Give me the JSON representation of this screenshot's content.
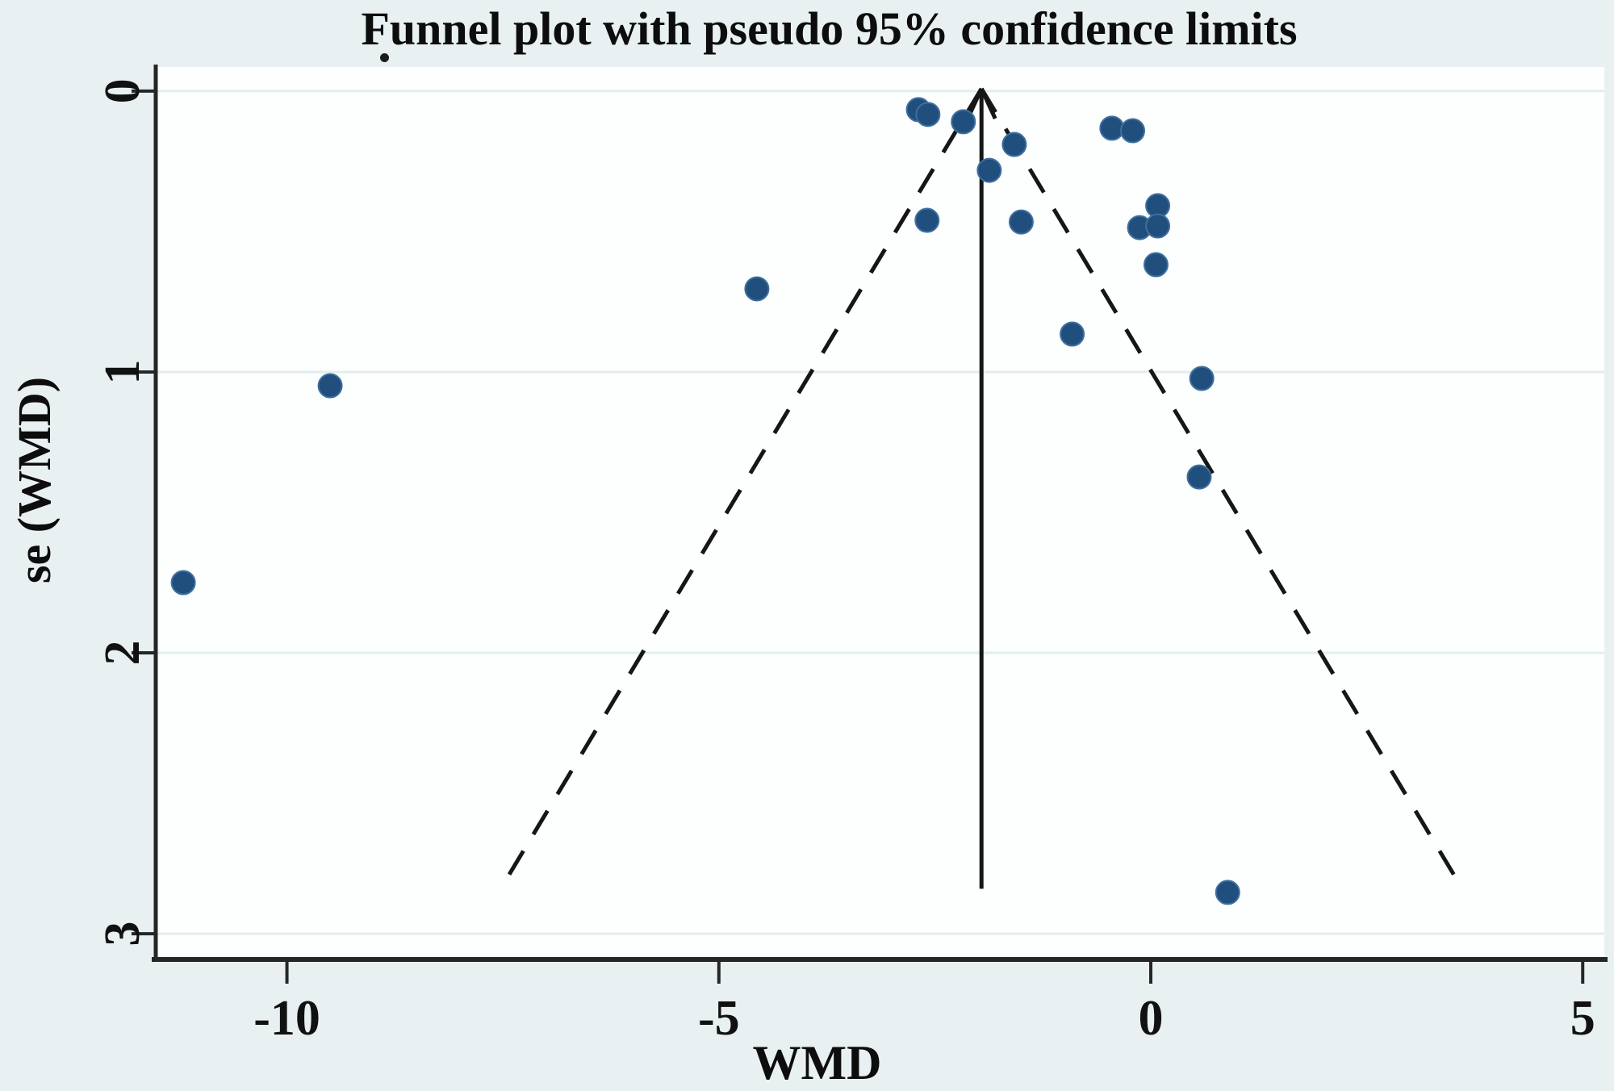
{
  "chart_data": {
    "type": "scatter",
    "title": "Funnel plot with pseudo 95% confidence limits",
    "xlabel": "WMD",
    "ylabel": "se (WMD)",
    "xlim": [
      -11.5,
      5.25
    ],
    "se_lim": [
      -0.086,
      3.086
    ],
    "y_axis_inverted": true,
    "x_ticks": [
      -10,
      -5,
      0,
      5
    ],
    "y_ticks": [
      0,
      1,
      2,
      3
    ],
    "grid": true,
    "legend": "none",
    "pooled_wmd": -1.96,
    "center_line": {
      "se_start": 0,
      "se_end": 2.84,
      "style": "solid",
      "arrow_up": true
    },
    "funnel": {
      "z": 1.96,
      "se_start": 0,
      "se_end": 2.83,
      "style": "dashed"
    },
    "points": [
      {
        "wmd": -2.69,
        "se": 0.066
      },
      {
        "wmd": -2.58,
        "se": 0.083
      },
      {
        "wmd": -2.17,
        "se": 0.109
      },
      {
        "wmd": -1.58,
        "se": 0.19
      },
      {
        "wmd": -1.87,
        "se": 0.282
      },
      {
        "wmd": -0.45,
        "se": 0.132
      },
      {
        "wmd": -0.21,
        "se": 0.141
      },
      {
        "wmd": -2.59,
        "se": 0.46
      },
      {
        "wmd": -1.5,
        "se": 0.466
      },
      {
        "wmd": 0.08,
        "se": 0.408
      },
      {
        "wmd": -0.13,
        "se": 0.486
      },
      {
        "wmd": 0.08,
        "se": 0.48
      },
      {
        "wmd": 0.06,
        "se": 0.618
      },
      {
        "wmd": -4.56,
        "se": 0.704
      },
      {
        "wmd": -0.91,
        "se": 0.865
      },
      {
        "wmd": -9.5,
        "se": 1.049
      },
      {
        "wmd": 0.59,
        "se": 1.023
      },
      {
        "wmd": 0.56,
        "se": 1.374
      },
      {
        "wmd": -11.2,
        "se": 1.75
      },
      {
        "wmd": 0.89,
        "se": 2.853
      }
    ],
    "colors": {
      "figure_bg": "#e9f0f2",
      "plot_bg": "#fdfefe",
      "gridline": "#e2eeee",
      "axis": "#262626",
      "line": "#161616",
      "marker": "#204f7d",
      "marker_edge": "#3e6f9e",
      "text": "#0d0d0d"
    }
  }
}
